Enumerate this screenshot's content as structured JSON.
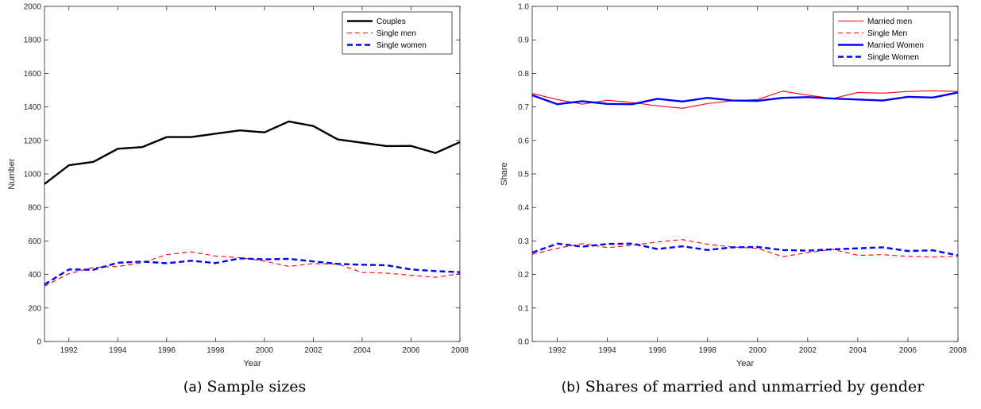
{
  "captions": [
    {
      "tag": "(a)",
      "text": "Sample sizes"
    },
    {
      "tag": "(b)",
      "text": "Shares of married and unmarried by gender"
    }
  ],
  "chart_data": [
    {
      "type": "line",
      "xlabel": "Year",
      "ylabel": "Number",
      "xlim": [
        1991,
        2008
      ],
      "ylim": [
        0,
        2000
      ],
      "xticks": [
        1992,
        1994,
        1996,
        1998,
        2000,
        2002,
        2004,
        2006,
        2008
      ],
      "yticks": [
        0,
        200,
        400,
        600,
        800,
        1000,
        1200,
        1400,
        1600,
        1800,
        2000
      ],
      "ytick_decimals": 0,
      "legend": "top-right",
      "grid": false,
      "x": [
        1991,
        1992,
        1993,
        1994,
        1995,
        1996,
        1997,
        1998,
        1999,
        2000,
        2001,
        2002,
        2003,
        2004,
        2005,
        2006,
        2007,
        2008
      ],
      "series": [
        {
          "name": "Couples",
          "color": "#000000",
          "style": "solid",
          "width": 2.4,
          "values": [
            940,
            1052,
            1072,
            1150,
            1160,
            1220,
            1220,
            1240,
            1260,
            1248,
            1313,
            1286,
            1206,
            1186,
            1166,
            1167,
            1125,
            1190
          ]
        },
        {
          "name": "Single men",
          "color": "#ff0000",
          "style": "dashed",
          "width": 1.1,
          "values": [
            330,
            405,
            442,
            448,
            470,
            518,
            535,
            510,
            500,
            480,
            448,
            465,
            462,
            412,
            408,
            395,
            383,
            405
          ]
        },
        {
          "name": "Single women",
          "color": "#0000ff",
          "style": "dashed",
          "width": 2.4,
          "values": [
            340,
            430,
            428,
            470,
            477,
            467,
            482,
            468,
            496,
            490,
            493,
            478,
            463,
            458,
            455,
            430,
            420,
            414
          ]
        }
      ]
    },
    {
      "type": "line",
      "xlabel": "Year",
      "ylabel": "Share",
      "xlim": [
        1991,
        2008
      ],
      "ylim": [
        0,
        1
      ],
      "xticks": [
        1992,
        1994,
        1996,
        1998,
        2000,
        2002,
        2004,
        2006,
        2008
      ],
      "yticks": [
        0,
        0.1,
        0.2,
        0.3,
        0.4,
        0.5,
        0.6,
        0.7,
        0.8,
        0.9,
        1
      ],
      "ytick_decimals": 1,
      "legend": "top-right",
      "grid": false,
      "x": [
        1991,
        1992,
        1993,
        1994,
        1995,
        1996,
        1997,
        1998,
        1999,
        2000,
        2001,
        2002,
        2003,
        2004,
        2005,
        2006,
        2007,
        2008
      ],
      "series": [
        {
          "name": "Married men",
          "color": "#ff0000",
          "style": "solid",
          "width": 1.1,
          "values": [
            0.74,
            0.722,
            0.708,
            0.72,
            0.713,
            0.703,
            0.696,
            0.71,
            0.718,
            0.722,
            0.747,
            0.735,
            0.725,
            0.743,
            0.741,
            0.746,
            0.748,
            0.746
          ]
        },
        {
          "name": "Single Men",
          "color": "#ff0000",
          "style": "dashed",
          "width": 1.1,
          "values": [
            0.26,
            0.278,
            0.292,
            0.28,
            0.287,
            0.297,
            0.304,
            0.29,
            0.282,
            0.278,
            0.253,
            0.265,
            0.275,
            0.257,
            0.259,
            0.254,
            0.252,
            0.254
          ]
        },
        {
          "name": "Married Women",
          "color": "#0000ff",
          "style": "solid",
          "width": 2.4,
          "values": [
            0.735,
            0.708,
            0.717,
            0.709,
            0.708,
            0.724,
            0.716,
            0.727,
            0.719,
            0.718,
            0.727,
            0.729,
            0.725,
            0.722,
            0.719,
            0.73,
            0.728,
            0.743
          ]
        },
        {
          "name": "Single Women",
          "color": "#0000ff",
          "style": "dashed",
          "width": 2.4,
          "values": [
            0.265,
            0.292,
            0.283,
            0.291,
            0.292,
            0.276,
            0.284,
            0.273,
            0.281,
            0.282,
            0.273,
            0.271,
            0.275,
            0.278,
            0.281,
            0.27,
            0.272,
            0.257
          ]
        }
      ]
    }
  ]
}
